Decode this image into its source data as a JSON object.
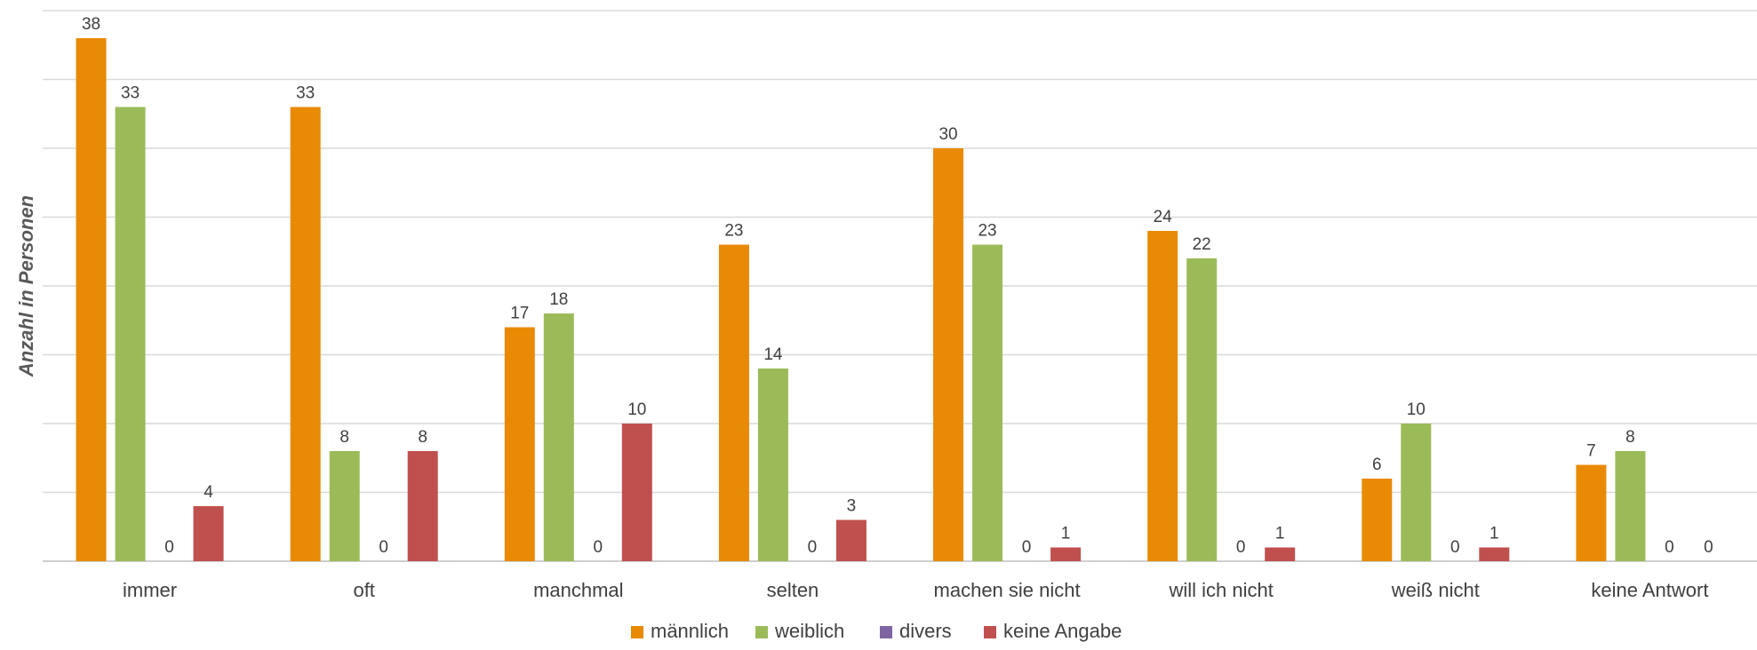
{
  "chart_data": {
    "type": "bar",
    "title": "",
    "xlabel": "",
    "ylabel": "Anzahl in Personen",
    "ylim": [
      0,
      40
    ],
    "grid": true,
    "legend_position": "bottom",
    "categories": [
      "immer",
      "oft",
      "manchmal",
      "selten",
      "machen sie nicht",
      "will ich nicht",
      "weiß nicht",
      "keine Antwort"
    ],
    "series": [
      {
        "name": "männlich",
        "color": "#e98a05",
        "values": [
          38,
          33,
          17,
          23,
          30,
          24,
          6,
          7
        ]
      },
      {
        "name": "weiblich",
        "color": "#9bbb59",
        "values": [
          33,
          8,
          18,
          14,
          23,
          22,
          10,
          8
        ]
      },
      {
        "name": "divers",
        "color": "#8064a2",
        "values": [
          0,
          0,
          0,
          0,
          0,
          0,
          0,
          0
        ]
      },
      {
        "name": "keine Angabe",
        "color": "#c0504d",
        "values": [
          4,
          8,
          10,
          3,
          1,
          1,
          1,
          0
        ]
      }
    ]
  }
}
